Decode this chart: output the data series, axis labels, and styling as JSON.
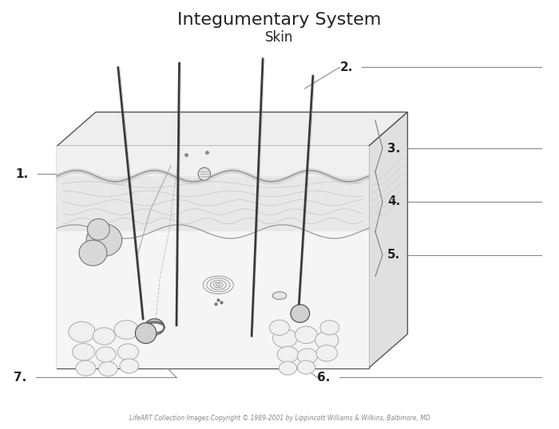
{
  "title": "Integumentary System",
  "subtitle": "Skin",
  "title_fontsize": 16,
  "subtitle_fontsize": 12,
  "background_color": "#ffffff",
  "label_fontsize": 11,
  "line_color": "#555555",
  "copyright_text": "LifeART Collection Images Copyright © 1989-2001 by Lippincott Williams & Wilkins, Baltimore, MD",
  "copyright_fontsize": 5.5
}
